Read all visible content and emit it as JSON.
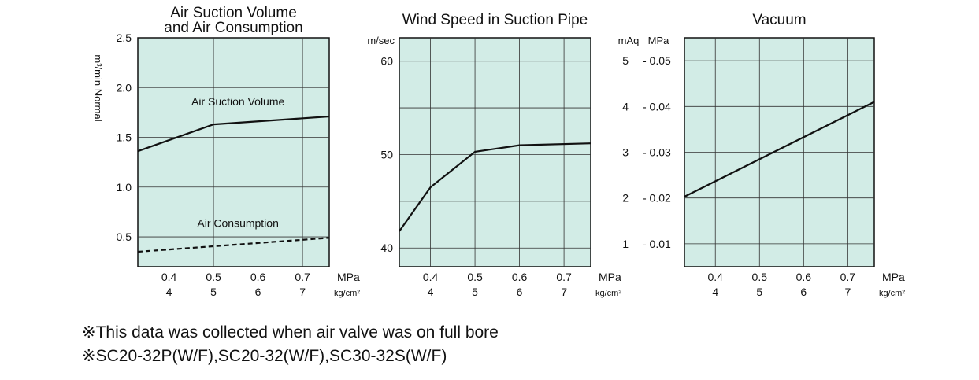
{
  "chart_data": [
    {
      "type": "line",
      "title_lines": [
        "Air Suction Volume",
        "and Air Consumption"
      ],
      "ylabel": "m³/min Normal",
      "x_mpa_ticks": [
        "0.4",
        "0.5",
        "0.6",
        "0.7"
      ],
      "x_kg_ticks": [
        "4",
        "5",
        "6",
        "7"
      ],
      "x_unit_mpa": "MPa",
      "x_unit_kg": "kg/cm²",
      "xlim": [
        0.33,
        0.76
      ],
      "ylim": [
        0.2,
        2.5
      ],
      "y_ticks": [
        0.5,
        1.0,
        1.5,
        2.0,
        2.5
      ],
      "y_tick_labels": [
        "0.5",
        "1.0",
        "1.5",
        "2.0",
        "2.5"
      ],
      "grid": true,
      "background": "#d2ece6",
      "series": [
        {
          "name": "Air Suction Volume",
          "style": "solid",
          "x": [
            0.33,
            0.5,
            0.76
          ],
          "y": [
            1.36,
            1.63,
            1.71
          ]
        },
        {
          "name": "Air Consumption",
          "style": "dashed",
          "x": [
            0.33,
            0.76
          ],
          "y": [
            0.35,
            0.49
          ]
        }
      ]
    },
    {
      "type": "line",
      "title_lines": [
        "Wind Speed in Suction Pipe"
      ],
      "ylabel": "m/sec",
      "x_mpa_ticks": [
        "0.4",
        "0.5",
        "0.6",
        "0.7"
      ],
      "x_kg_ticks": [
        "4",
        "5",
        "6",
        "7"
      ],
      "x_unit_mpa": "MPa",
      "x_unit_kg": "kg/cm²",
      "xlim": [
        0.33,
        0.76
      ],
      "ylim": [
        38,
        62.5
      ],
      "y_ticks": [
        40,
        50,
        60
      ],
      "y_tick_labels": [
        "40",
        "50",
        "60"
      ],
      "grid": true,
      "background": "#d2ece6",
      "series": [
        {
          "style": "solid",
          "x": [
            0.33,
            0.4,
            0.5,
            0.6,
            0.76
          ],
          "y": [
            41.8,
            46.5,
            50.3,
            51.0,
            51.2
          ]
        }
      ]
    },
    {
      "type": "line",
      "title_lines": [
        "Vacuum"
      ],
      "ylabel": "mAq",
      "ylabel2": "MPa",
      "x_mpa_ticks": [
        "0.4",
        "0.5",
        "0.6",
        "0.7"
      ],
      "x_kg_ticks": [
        "4",
        "5",
        "6",
        "7"
      ],
      "x_unit_mpa": "MPa",
      "x_unit_kg": "kg/cm²",
      "xlim": [
        0.33,
        0.76
      ],
      "ylim": [
        0.5,
        5.5
      ],
      "y_ticks": [
        1,
        2,
        3,
        4,
        5
      ],
      "y_tick_labels": [
        "1",
        "2",
        "3",
        "4",
        "5"
      ],
      "y2_tick_labels": [
        "- 0.01",
        "- 0.02",
        "- 0.03",
        "- 0.04",
        "- 0.05"
      ],
      "grid": true,
      "background": "#d2ece6",
      "series": [
        {
          "style": "solid",
          "x": [
            0.33,
            0.76
          ],
          "y": [
            2.03,
            4.1
          ]
        }
      ]
    }
  ],
  "notes": [
    "※This data was collected when air valve was on full bore",
    "※SC20-32P(W/F),SC20-32(W/F),SC30-32S(W/F)"
  ]
}
